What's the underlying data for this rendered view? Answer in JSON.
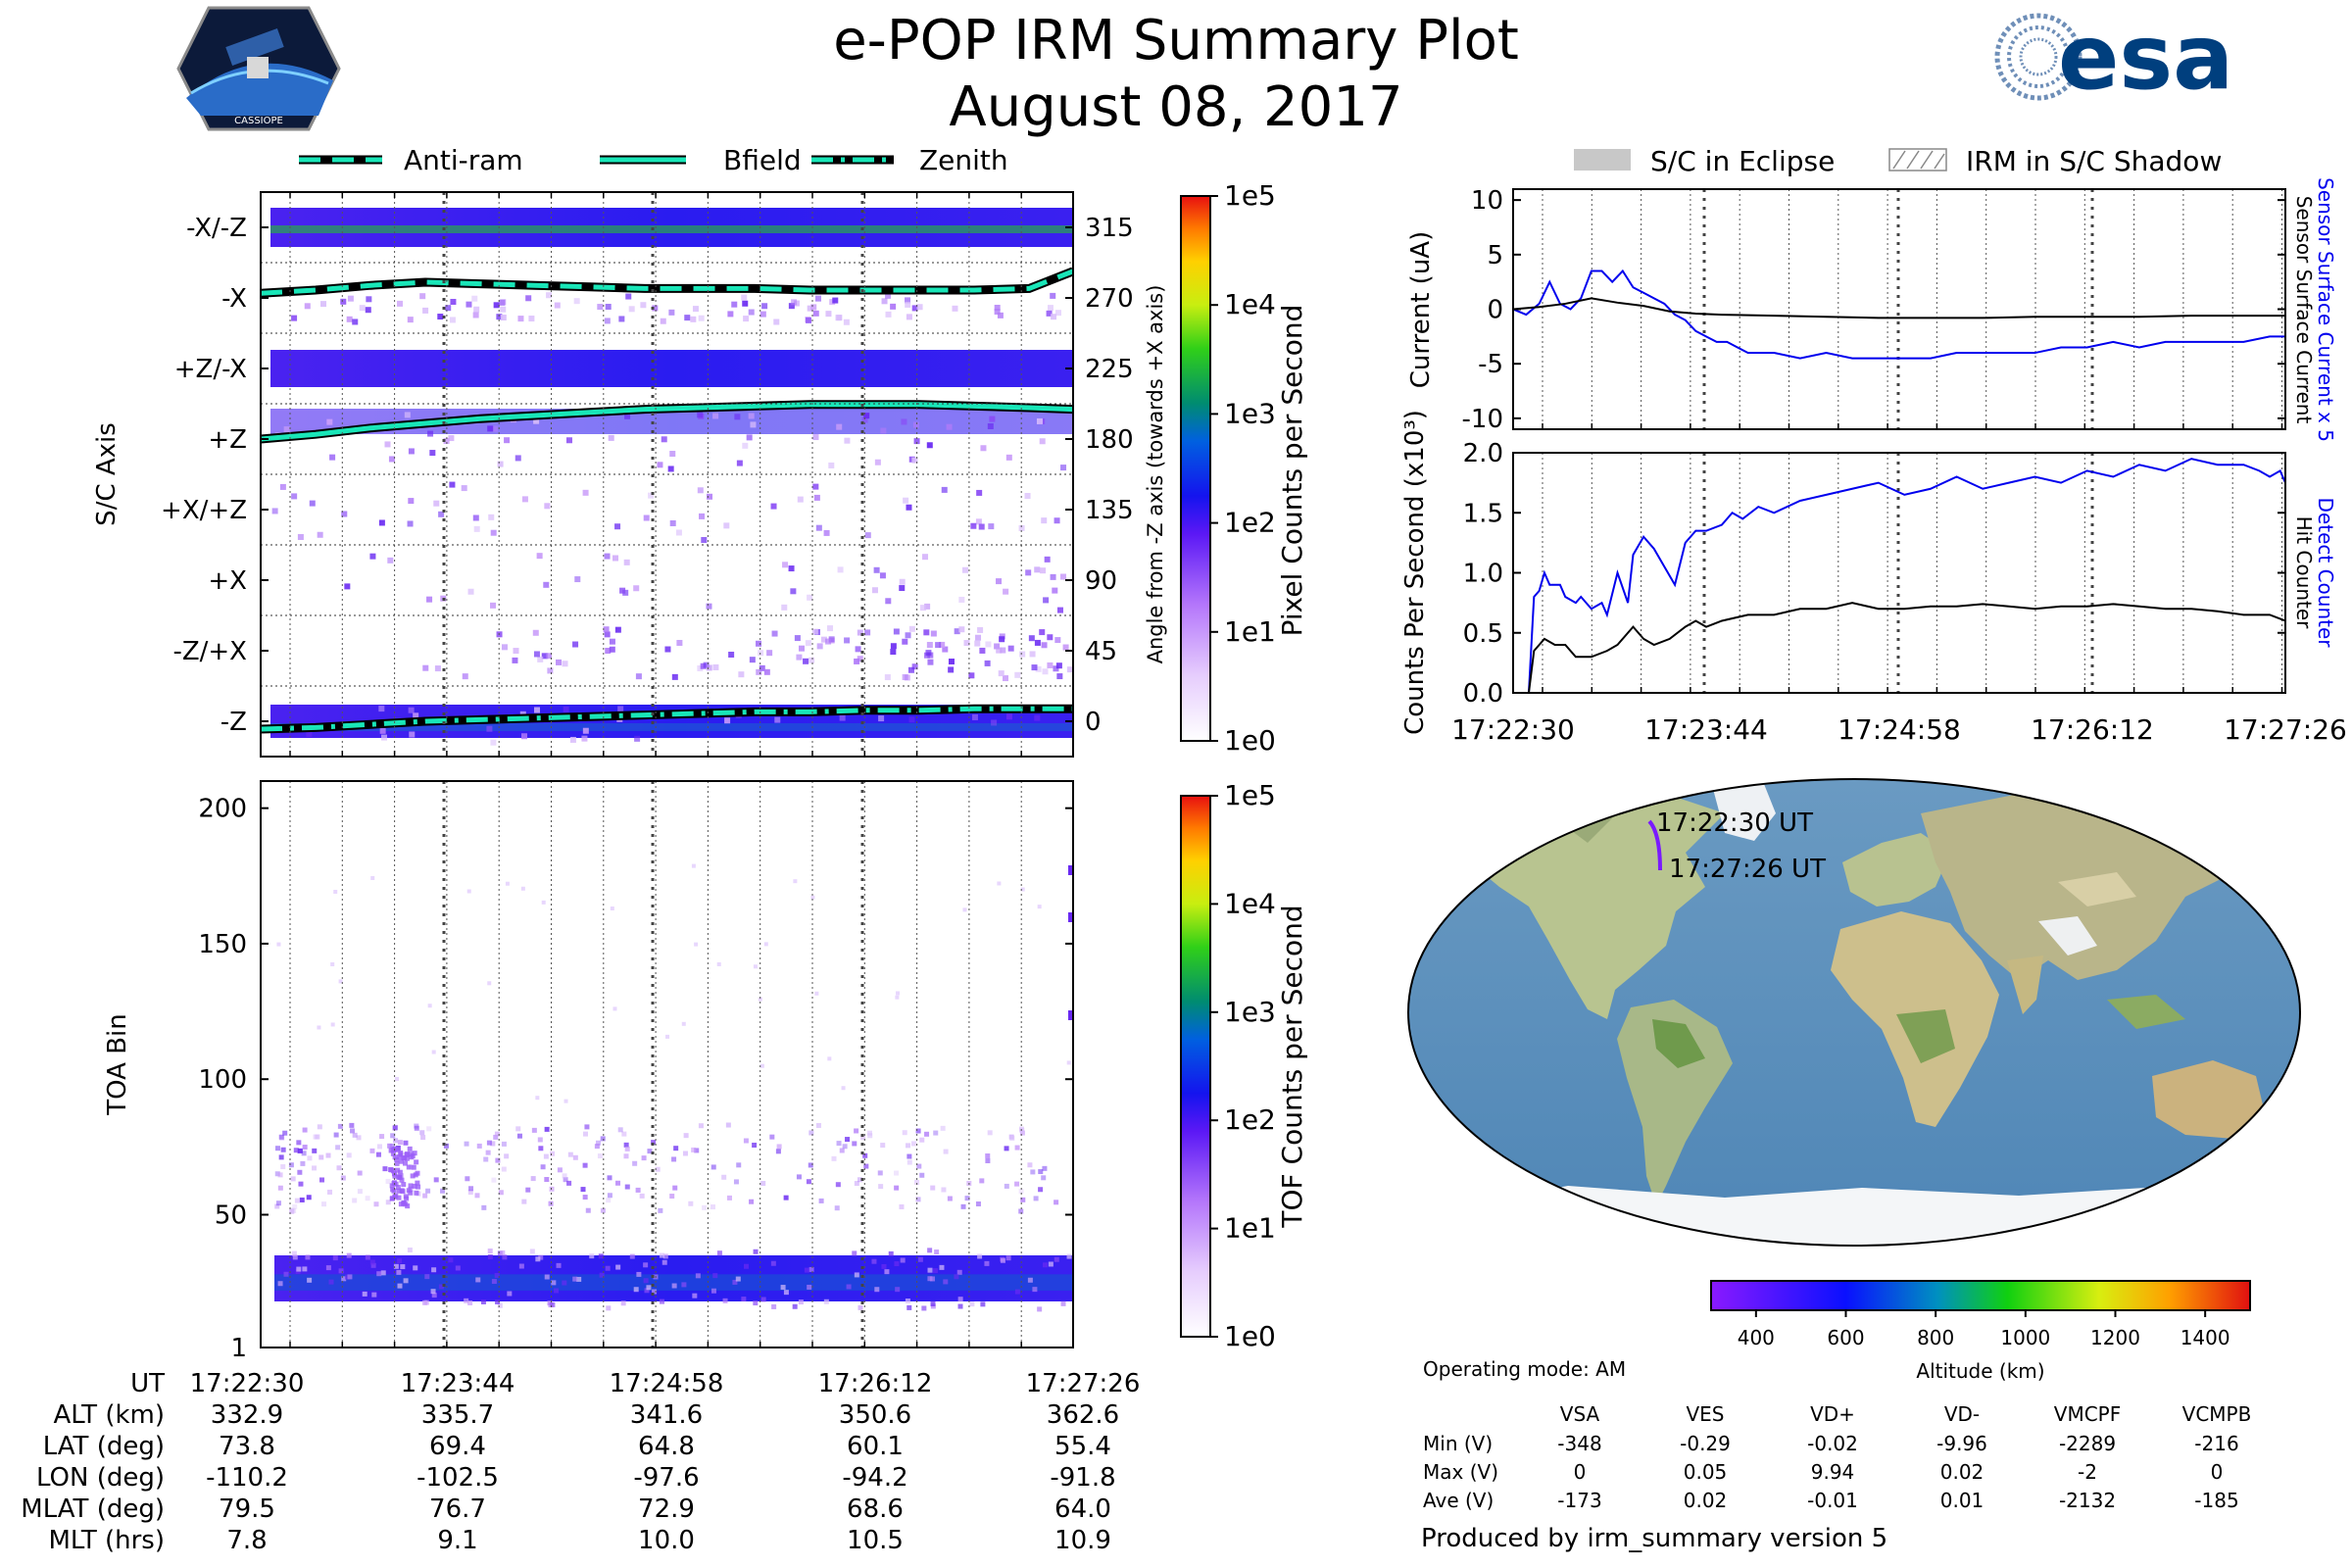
{
  "header": {
    "title": "e-POP IRM Summary Plot",
    "date": "August 08, 2017",
    "left_logo_text": "CASSIOPE",
    "right_logo_text": "esa"
  },
  "legend_left": [
    {
      "label": "Anti-ram",
      "style": "dashed"
    },
    {
      "label": "Bfield",
      "style": "solid"
    },
    {
      "label": "Zenith",
      "style": "dashdot"
    }
  ],
  "legend_right": [
    {
      "label": "S/C in Eclipse"
    },
    {
      "label": "IRM in S/C Shadow"
    }
  ],
  "colors": {
    "line_cyan": "#19e6b8",
    "blue_line": "#0000ee",
    "black_line": "#000000",
    "eclipse_gray": "#c8c8c8"
  },
  "chart_data": [
    {
      "id": "pixel_counts",
      "type": "heatmap",
      "ylabel": "S/C Axis",
      "y_ticks": [
        "-X/-Z",
        "-X",
        "+Z/-X",
        "+Z",
        "+X/+Z",
        "+X",
        "-Z/+X",
        "-Z"
      ],
      "right_ticks": [
        "315",
        "270",
        "225",
        "180",
        "135",
        "90",
        "45",
        "0"
      ],
      "right_label": "Angle from -Z axis (towards +X axis)",
      "ylim": [
        -22.5,
        337.5
      ],
      "colorbar": {
        "label": "Pixel Counts per Second",
        "ticks": [
          "1e0",
          "1e1",
          "1e2",
          "1e3",
          "1e4",
          "1e5"
        ]
      },
      "series": [
        {
          "name": "Anti-ram",
          "x": [
            0,
            20,
            40,
            60,
            80,
            100,
            120,
            140,
            160,
            180,
            200,
            220,
            240,
            260,
            280,
            296
          ],
          "values": [
            273,
            275,
            278,
            280,
            279,
            278,
            277,
            276,
            276,
            276,
            275,
            275,
            275,
            275,
            276,
            287
          ]
        },
        {
          "name": "Bfield",
          "x": [
            0,
            20,
            40,
            60,
            80,
            100,
            120,
            140,
            160,
            180,
            200,
            220,
            240,
            260,
            280,
            296
          ],
          "values": [
            180,
            183,
            187,
            190,
            193,
            195,
            197,
            199,
            200,
            201,
            202,
            202,
            202,
            201,
            200,
            199
          ]
        },
        {
          "name": "Zenith",
          "x": [
            0,
            20,
            40,
            60,
            80,
            100,
            120,
            140,
            160,
            180,
            200,
            220,
            240,
            260,
            280,
            296
          ],
          "values": [
            -5,
            -4,
            -2,
            0,
            1,
            2,
            3,
            4,
            5,
            6,
            6,
            7,
            7,
            8,
            8,
            8
          ]
        }
      ]
    },
    {
      "id": "tof_counts",
      "type": "heatmap",
      "ylabel": "TOA Bin",
      "y_ticks": [
        1,
        50,
        100,
        150,
        200
      ],
      "ylim": [
        1,
        210
      ],
      "colorbar": {
        "label": "TOF Counts per Second",
        "ticks": [
          "1e0",
          "1e1",
          "1e2",
          "1e3",
          "1e4",
          "1e5"
        ]
      }
    },
    {
      "id": "current",
      "type": "line",
      "ylabel": "Current (uA)",
      "yticks": [
        10,
        5,
        0,
        -5,
        -10
      ],
      "ylim": [
        -11,
        11
      ],
      "right_labels": [
        {
          "text": "Sensor Surface Current x 5",
          "color": "#0000ee"
        },
        {
          "text": "Sensor Surface Current",
          "color": "#000000"
        }
      ],
      "series": [
        {
          "name": "Sensor Surface Current x 5",
          "x": [
            0,
            5,
            10,
            14,
            18,
            22,
            26,
            30,
            34,
            38,
            42,
            46,
            50,
            54,
            58,
            62,
            66,
            70,
            74,
            78,
            82,
            86,
            90,
            100,
            110,
            120,
            130,
            140,
            150,
            160,
            170,
            180,
            190,
            200,
            210,
            220,
            230,
            240,
            250,
            260,
            270,
            280,
            290,
            296
          ],
          "values": [
            0,
            -0.5,
            0.5,
            2.5,
            0.5,
            0,
            1,
            3.5,
            3.5,
            2.5,
            3.5,
            2,
            1.5,
            1,
            0.5,
            -0.5,
            -1,
            -2,
            -2.5,
            -3,
            -3,
            -3.5,
            -4,
            -4,
            -4.5,
            -4,
            -4.5,
            -4.5,
            -4.5,
            -4.5,
            -4,
            -4,
            -4,
            -4,
            -3.5,
            -3.5,
            -3,
            -3.5,
            -3,
            -3,
            -3,
            -3,
            -2.5,
            -2.5
          ]
        },
        {
          "name": "Sensor Surface Current",
          "x": [
            0,
            10,
            20,
            30,
            40,
            50,
            60,
            70,
            80,
            100,
            120,
            140,
            160,
            180,
            200,
            220,
            240,
            260,
            280,
            296
          ],
          "values": [
            0,
            0.2,
            0.5,
            1,
            0.6,
            0.3,
            -0.2,
            -0.4,
            -0.5,
            -0.6,
            -0.7,
            -0.8,
            -0.8,
            -0.8,
            -0.7,
            -0.7,
            -0.7,
            -0.6,
            -0.6,
            -0.6
          ]
        }
      ]
    },
    {
      "id": "counts",
      "type": "line",
      "ylabel": "Counts Per Second (x10³)",
      "yticks": [
        "2.0",
        "1.5",
        "1.0",
        "0.5",
        "0.0"
      ],
      "ylim": [
        0,
        2.0
      ],
      "xlabels": [
        "17:22:30",
        "17:23:44",
        "17:24:58",
        "17:26:12",
        "17:27:26"
      ],
      "right_labels": [
        {
          "text": "Detect Counter",
          "color": "#0000ee"
        },
        {
          "text": "Hit Counter",
          "color": "#000000"
        }
      ],
      "series": [
        {
          "name": "Detect Counter",
          "x": [
            0,
            6,
            8,
            10,
            12,
            14,
            18,
            20,
            24,
            26,
            30,
            34,
            36,
            40,
            44,
            46,
            50,
            54,
            58,
            62,
            66,
            70,
            74,
            80,
            84,
            88,
            94,
            100,
            110,
            120,
            130,
            140,
            150,
            160,
            170,
            180,
            190,
            200,
            210,
            220,
            230,
            240,
            250,
            260,
            270,
            280,
            286,
            290,
            294,
            296
          ],
          "values": [
            0,
            0,
            0.8,
            0.85,
            1.0,
            0.9,
            0.9,
            0.8,
            0.75,
            0.8,
            0.7,
            0.75,
            0.65,
            1.0,
            0.75,
            1.15,
            1.3,
            1.2,
            1.05,
            0.9,
            1.25,
            1.35,
            1.35,
            1.4,
            1.5,
            1.45,
            1.55,
            1.5,
            1.6,
            1.65,
            1.7,
            1.75,
            1.65,
            1.7,
            1.8,
            1.7,
            1.75,
            1.8,
            1.75,
            1.85,
            1.8,
            1.9,
            1.85,
            1.95,
            1.9,
            1.9,
            1.85,
            1.8,
            1.85,
            1.75
          ]
        },
        {
          "name": "Hit Counter",
          "x": [
            0,
            6,
            8,
            12,
            16,
            20,
            24,
            30,
            36,
            40,
            46,
            50,
            54,
            60,
            66,
            70,
            74,
            80,
            90,
            100,
            110,
            120,
            130,
            140,
            150,
            160,
            170,
            180,
            190,
            200,
            210,
            220,
            230,
            240,
            250,
            260,
            270,
            280,
            290,
            296
          ],
          "values": [
            0,
            0,
            0.35,
            0.45,
            0.4,
            0.4,
            0.3,
            0.3,
            0.35,
            0.4,
            0.55,
            0.45,
            0.4,
            0.45,
            0.55,
            0.6,
            0.55,
            0.6,
            0.65,
            0.65,
            0.7,
            0.7,
            0.75,
            0.7,
            0.7,
            0.72,
            0.72,
            0.74,
            0.72,
            0.7,
            0.72,
            0.72,
            0.74,
            0.72,
            0.7,
            0.7,
            0.68,
            0.65,
            0.65,
            0.6
          ]
        }
      ]
    },
    {
      "id": "altitude_colorbar",
      "type": "colorbar",
      "label": "Altitude (km)",
      "ticks": [
        "400",
        "600",
        "800",
        "1000",
        "1200",
        "1400"
      ],
      "range": [
        300,
        1500
      ]
    }
  ],
  "map": {
    "start_label": "17:22:30 UT",
    "end_label": "17:27:26 UT"
  },
  "ephemeris": {
    "labels": [
      "UT",
      "ALT (km)",
      "LAT (deg)",
      "LON (deg)",
      "MLAT (deg)",
      "MLT (hrs)"
    ],
    "columns": [
      [
        "17:22:30",
        "332.9",
        "73.8",
        "-110.2",
        "79.5",
        "7.8"
      ],
      [
        "17:23:44",
        "335.7",
        "69.4",
        "-102.5",
        "76.7",
        "9.1"
      ],
      [
        "17:24:58",
        "341.6",
        "64.8",
        "-97.6",
        "72.9",
        "10.0"
      ],
      [
        "17:26:12",
        "350.6",
        "60.1",
        "-94.2",
        "68.6",
        "10.5"
      ],
      [
        "17:27:26",
        "362.6",
        "55.4",
        "-91.8",
        "64.0",
        "10.9"
      ]
    ]
  },
  "voltages": {
    "mode": "Operating mode: AM",
    "headers": [
      "VSA",
      "VES",
      "VD+",
      "VD-",
      "VMCPF",
      "VCMPB"
    ],
    "rows": [
      {
        "label": "Min (V)",
        "values": [
          "-348",
          "-0.29",
          "-0.02",
          "-9.96",
          "-2289",
          "-216"
        ]
      },
      {
        "label": "Max (V)",
        "values": [
          "0",
          "0.05",
          "9.94",
          "0.02",
          "-2",
          "0"
        ]
      },
      {
        "label": "Ave (V)",
        "values": [
          "-173",
          "0.02",
          "-0.01",
          "0.01",
          "-2132",
          "-185"
        ]
      }
    ]
  },
  "footer": "Produced by irm_summary version 5"
}
